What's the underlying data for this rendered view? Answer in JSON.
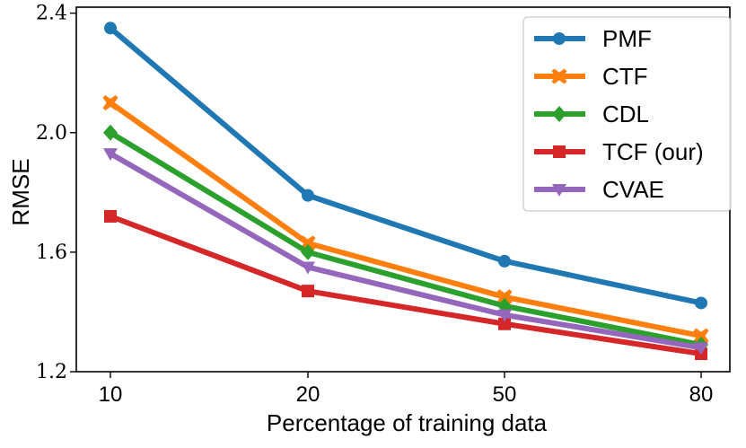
{
  "chart_data": {
    "type": "line",
    "title": "",
    "xlabel": "Percentage of training data",
    "ylabel": "RMSE",
    "categories": [
      "10",
      "20",
      "50",
      "80"
    ],
    "ylim": [
      1.2,
      2.42
    ],
    "yticks": [
      "1.2",
      "1.6",
      "2.0",
      "2.4"
    ],
    "ytick_values": [
      1.2,
      1.6,
      2.0,
      2.4
    ],
    "grid": false,
    "legend_position": "top-right",
    "series": [
      {
        "name": "PMF",
        "values": [
          2.35,
          1.79,
          1.57,
          1.43
        ],
        "color": "#1f77b4",
        "marker": "circle"
      },
      {
        "name": "CTF",
        "values": [
          2.1,
          1.63,
          1.45,
          1.32
        ],
        "color": "#ff7f0e",
        "marker": "x"
      },
      {
        "name": "CDL",
        "values": [
          2.0,
          1.6,
          1.42,
          1.29
        ],
        "color": "#2ca02c",
        "marker": "diamond"
      },
      {
        "name": "TCF (our)",
        "values": [
          1.72,
          1.47,
          1.36,
          1.26
        ],
        "color": "#d62728",
        "marker": "square"
      },
      {
        "name": "CVAE",
        "values": [
          1.93,
          1.55,
          1.39,
          1.28
        ],
        "color": "#9467bd",
        "marker": "triangle-down"
      }
    ]
  }
}
